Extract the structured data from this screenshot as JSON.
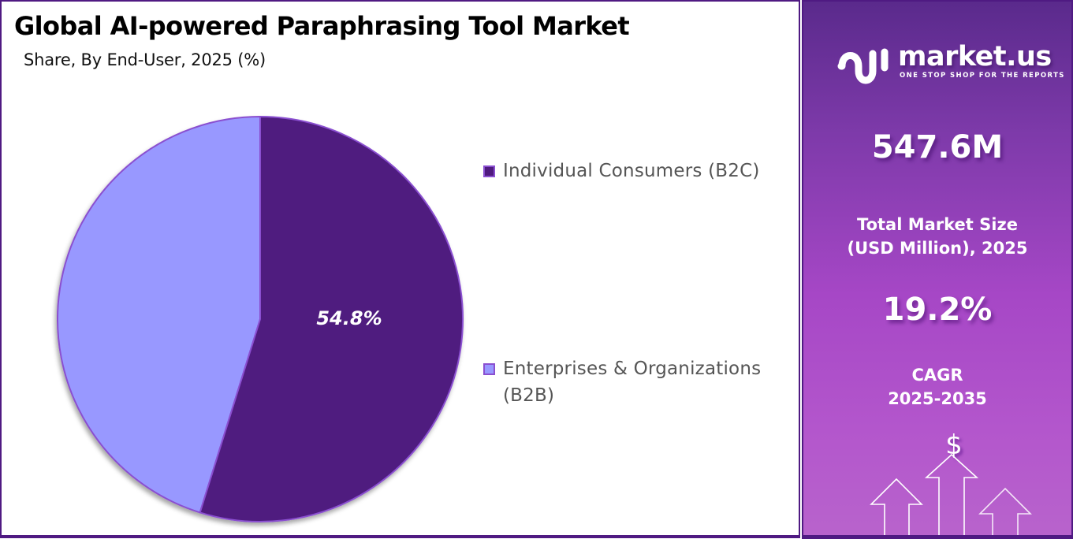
{
  "header": {
    "title": "Global AI-powered Paraphrasing Tool Market",
    "subtitle": "Share, By End-User, 2025 (%)"
  },
  "chart_data": {
    "type": "pie",
    "title": "Global AI-powered Paraphrasing Tool Market",
    "subtitle": "Share, By End-User, 2025 (%)",
    "categories": [
      "Individual Consumers (B2C)",
      "Enterprises & Organizations (B2B)"
    ],
    "values": [
      54.8,
      45.2
    ],
    "labels_shown": [
      "54.8%",
      ""
    ],
    "colors": [
      "#4f1a7f",
      "#9898ff"
    ],
    "legend_position": "right"
  },
  "legend": {
    "items": [
      {
        "label": "Individual Consumers (B2C)",
        "color": "#4f1a7f"
      },
      {
        "label_line1": "Enterprises & Organizations",
        "label_line2": "(B2B)",
        "color": "#9898ff"
      }
    ]
  },
  "slice_labels": {
    "b2c": "54.8%"
  },
  "sidebar": {
    "brand_name": "market.us",
    "brand_tagline": "ONE STOP SHOP FOR THE REPORTS",
    "market_size_value": "547.6M",
    "market_size_label_line1": "Total Market Size",
    "market_size_label_line2": "(USD Million), 2025",
    "cagr_value": "19.2%",
    "cagr_label_line1": "CAGR",
    "cagr_label_line2": "2025-2035",
    "dollar_symbol": "$"
  },
  "colors": {
    "border": "#4f1a82",
    "panel_top": "#5a2a8c",
    "panel_bottom": "#b863cc"
  }
}
